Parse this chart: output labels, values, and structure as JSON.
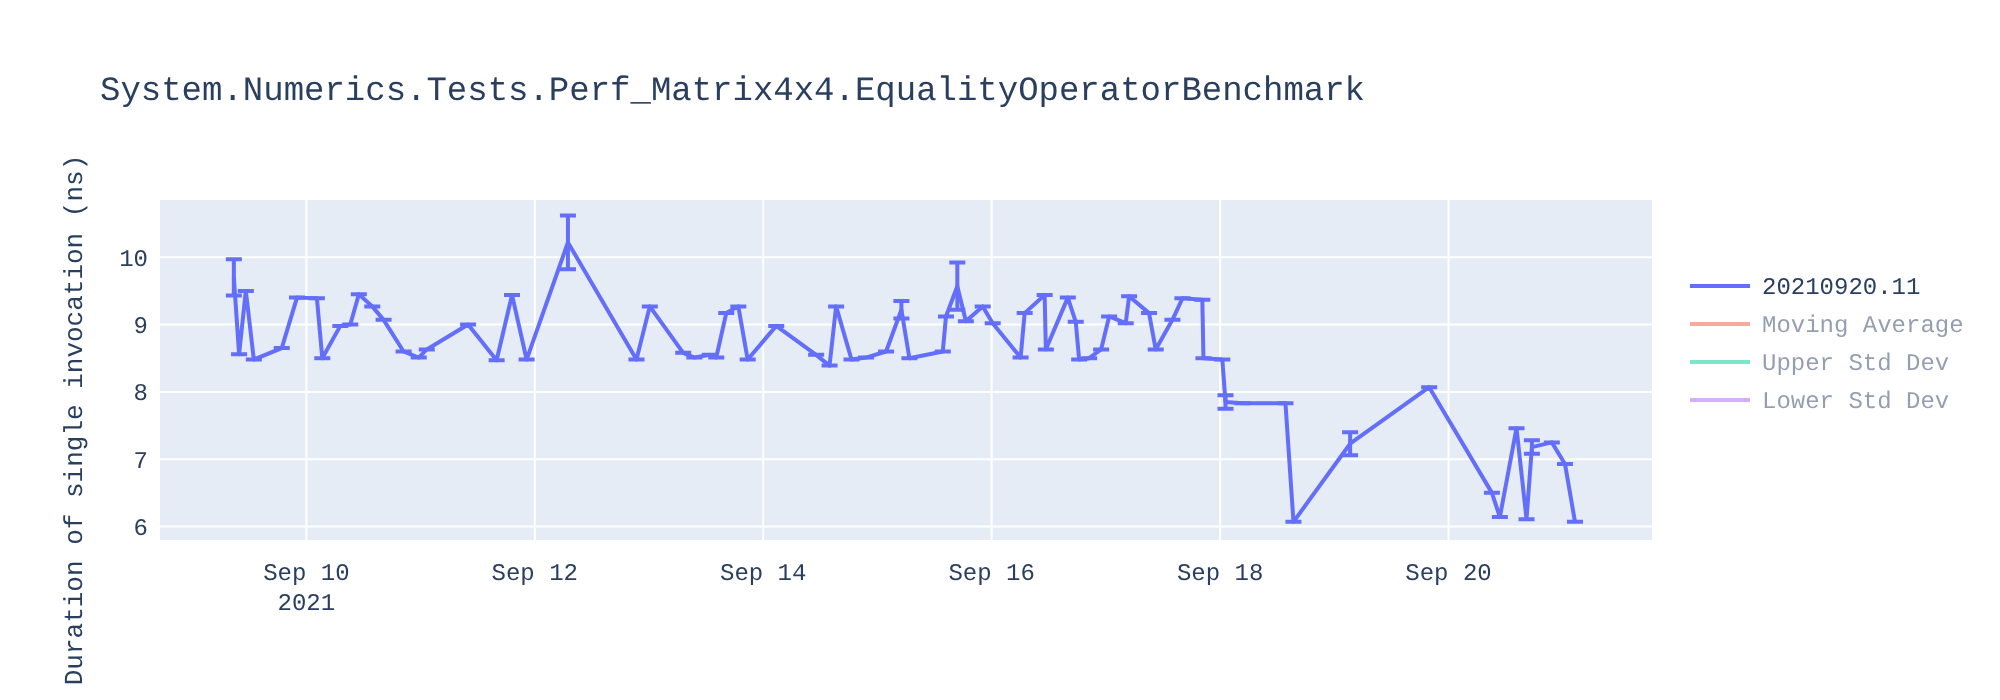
{
  "chart_data": {
    "type": "line",
    "title": "System.Numerics.Tests.Perf_Matrix4x4.EqualityOperatorBenchmark",
    "ylabel": "Duration of single invocation (ns)",
    "xlim": [
      "2021-09-08T17:15",
      "2021-09-21T18:45"
    ],
    "xticks": [
      {
        "value": "2021-09-10",
        "label": "Sep 10\n2021"
      },
      {
        "value": "2021-09-12",
        "label": "Sep 12"
      },
      {
        "value": "2021-09-14",
        "label": "Sep 14"
      },
      {
        "value": "2021-09-16",
        "label": "Sep 16"
      },
      {
        "value": "2021-09-18",
        "label": "Sep 18"
      },
      {
        "value": "2021-09-20",
        "label": "Sep 20"
      }
    ],
    "ylim": [
      5.8,
      10.85
    ],
    "yticks": [
      6,
      7,
      8,
      9,
      10
    ],
    "grid": true,
    "legend": "right",
    "marker": "none",
    "line_style": "solid",
    "x": [
      "2021-09-09T08:46",
      "2021-09-09T09:52",
      "2021-09-09T11:17",
      "2021-09-09T12:58",
      "2021-09-09T18:50",
      "2021-09-09T22:02",
      "2021-09-10T02:13",
      "2021-09-10T03:21",
      "2021-09-10T07:08",
      "2021-09-10T09:14",
      "2021-09-10T11:02",
      "2021-09-10T13:51",
      "2021-09-10T16:14",
      "2021-09-10T20:26",
      "2021-09-10T23:37",
      "2021-09-11T01:18",
      "2021-09-11T09:59",
      "2021-09-11T15:59",
      "2021-09-11T19:13",
      "2021-09-11T22:17",
      "2021-09-12T06:58",
      "2021-09-12T21:22",
      "2021-09-13T00:10",
      "2021-09-13T07:11",
      "2021-09-13T09:32",
      "2021-09-13T12:46",
      "2021-09-13T14:08",
      "2021-09-13T16:14",
      "2021-09-13T18:46",
      "2021-09-13T20:44",
      "2021-09-14T02:44",
      "2021-09-14T11:07",
      "2021-09-14T13:56",
      "2021-09-14T15:19",
      "2021-09-14T18:33",
      "2021-09-14T21:37",
      "2021-09-15T01:49",
      "2021-09-15T05:02",
      "2021-09-15T06:43",
      "2021-09-15T13:44",
      "2021-09-15T14:24",
      "2021-09-15T16:47",
      "2021-09-15T18:35",
      "2021-09-15T22:07",
      "2021-09-16T00:13",
      "2021-09-16T06:05",
      "2021-09-16T06:56",
      "2021-09-16T11:08",
      "2021-09-16T11:23",
      "2021-09-16T16:00",
      "2021-09-16T17:40",
      "2021-09-16T18:23",
      "2021-09-16T20:29",
      "2021-09-16T23:00",
      "2021-09-17T00:41",
      "2021-09-17T04:10",
      "2021-09-17T04:53",
      "2021-09-17T09:04",
      "2021-09-17T10:28",
      "2021-09-17T13:59",
      "2021-09-17T16:05",
      "2021-09-17T20:16",
      "2021-09-17T20:30",
      "2021-09-18T00:28",
      "2021-09-18T01:08",
      "2021-09-18T04:40",
      "2021-09-18T13:44",
      "2021-09-18T15:25",
      "2021-09-19T03:19",
      "2021-09-19T19:56",
      "2021-09-20T09:07",
      "2021-09-20T10:47",
      "2021-09-20T14:17",
      "2021-09-20T16:23",
      "2021-09-20T17:31",
      "2021-09-20T21:42",
      "2021-09-21T00:28",
      "2021-09-21T02:34"
    ],
    "series": [
      {
        "name": "20210920.11",
        "color": "#636efa",
        "values": [
          9.7,
          8.56,
          9.5,
          8.48,
          8.65,
          9.4,
          9.39,
          8.5,
          8.98,
          9.0,
          9.45,
          9.27,
          9.07,
          8.6,
          8.51,
          8.63,
          9.0,
          8.47,
          9.44,
          8.48,
          10.22,
          8.48,
          9.27,
          8.58,
          8.51,
          8.55,
          8.51,
          9.17,
          9.27,
          8.48,
          8.98,
          8.55,
          8.39,
          9.27,
          8.48,
          8.51,
          8.6,
          9.22,
          8.5,
          8.6,
          9.12,
          9.57,
          9.05,
          9.27,
          9.02,
          8.51,
          9.17,
          9.44,
          8.63,
          9.4,
          9.04,
          8.48,
          8.5,
          8.63,
          9.12,
          9.02,
          9.42,
          9.17,
          8.63,
          9.07,
          9.39,
          9.37,
          8.5,
          8.48,
          7.85,
          7.83,
          7.83,
          6.07,
          7.23,
          8.07,
          6.5,
          6.14,
          7.46,
          6.11,
          7.18,
          7.25,
          6.93,
          6.07
        ],
        "errors": [
          0.27,
          0,
          0,
          0,
          0,
          0,
          0,
          0,
          0,
          0,
          0,
          0,
          0,
          0,
          0,
          0,
          0,
          0,
          0,
          0,
          0.4,
          0,
          0,
          0,
          0,
          0,
          0,
          0,
          0,
          0,
          0,
          0,
          0,
          0,
          0,
          0,
          0,
          0.13,
          0,
          0,
          0,
          0.35,
          0,
          0,
          0,
          0,
          0,
          0,
          0,
          0,
          0,
          0,
          0,
          0,
          0,
          0,
          0,
          0,
          0,
          0,
          0,
          0,
          0,
          0,
          0.1,
          0,
          0,
          0,
          0.17,
          0,
          0,
          0,
          0,
          0,
          0.1,
          0,
          0,
          0
        ]
      },
      {
        "name": "Moving Average",
        "color": "#ef553b",
        "values": [
          null,
          null,
          null,
          null,
          null,
          null,
          null,
          null,
          null,
          null,
          null,
          null,
          null,
          null,
          null,
          null,
          null,
          null,
          null,
          null,
          null,
          null,
          null,
          null,
          null,
          null,
          null,
          null,
          null,
          null,
          null,
          null,
          null,
          null,
          null,
          null,
          null,
          null,
          null,
          null,
          null,
          null,
          null,
          null,
          null,
          null,
          null,
          null,
          null,
          null,
          null,
          null,
          null,
          null,
          null,
          null,
          null,
          null,
          null,
          null,
          null,
          null,
          null,
          null,
          null,
          null,
          null,
          null,
          null,
          null,
          null,
          null,
          null,
          null,
          null,
          null,
          null,
          null
        ]
      },
      {
        "name": "Upper Std Dev",
        "color": "#00cc96",
        "values": [
          null,
          null,
          null,
          null,
          null,
          null,
          null,
          null,
          null,
          null,
          null,
          null,
          null,
          null,
          null,
          null,
          null,
          null,
          null,
          null,
          null,
          null,
          null,
          null,
          null,
          null,
          null,
          null,
          null,
          null,
          null,
          null,
          null,
          null,
          null,
          null,
          null,
          null,
          null,
          null,
          null,
          null,
          null,
          null,
          null,
          null,
          null,
          null,
          null,
          null,
          null,
          null,
          null,
          null,
          null,
          null,
          null,
          null,
          null,
          null,
          null,
          null,
          null,
          null,
          null,
          null,
          null,
          null,
          null,
          null,
          null,
          null,
          null,
          null,
          null,
          null,
          null,
          null
        ]
      },
      {
        "name": "Lower Std Dev",
        "color": "#ab63fa",
        "values": [
          null,
          null,
          null,
          null,
          null,
          null,
          null,
          null,
          null,
          null,
          null,
          null,
          null,
          null,
          null,
          null,
          null,
          null,
          null,
          null,
          null,
          null,
          null,
          null,
          null,
          null,
          null,
          null,
          null,
          null,
          null,
          null,
          null,
          null,
          null,
          null,
          null,
          null,
          null,
          null,
          null,
          null,
          null,
          null,
          null,
          null,
          null,
          null,
          null,
          null,
          null,
          null,
          null,
          null,
          null,
          null,
          null,
          null,
          null,
          null,
          null,
          null,
          null,
          null,
          null,
          null,
          null,
          null,
          null,
          null,
          null,
          null,
          null,
          null,
          null,
          null,
          null,
          null
        ]
      }
    ]
  }
}
